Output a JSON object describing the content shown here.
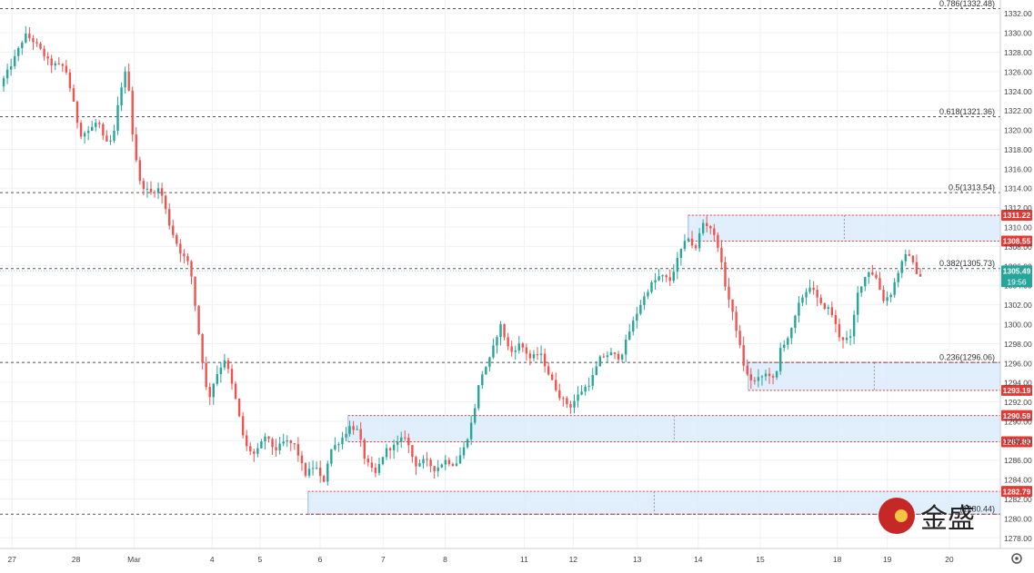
{
  "chart_data": {
    "type": "candlestick",
    "title": "",
    "colors": {
      "up": "#26a69a",
      "down": "#ef5350",
      "zone_fill": "#dcebfb",
      "zone_line": "#e53935",
      "fib_line": "#555555",
      "grid": "#eef0f3",
      "last_price": "#26a69a",
      "label_red": "#e53935"
    },
    "y_axis": {
      "min": 1277,
      "max": 1333,
      "ticks": [
        1278,
        1280,
        1282,
        1284,
        1286,
        1288,
        1290,
        1292,
        1294,
        1296,
        1298,
        1300,
        1302,
        1304,
        1306,
        1308,
        1310,
        1312,
        1314,
        1316,
        1318,
        1320,
        1322,
        1324,
        1326,
        1328,
        1330,
        1332
      ],
      "tick_labels": [
        "1278.00",
        "1280.00",
        "1282.00",
        "1284.00",
        "1286.00",
        "1288.00",
        "1290.00",
        "1292.00",
        "1294.00",
        "1296.00",
        "1298.00",
        "1300.00",
        "1302.00",
        "1304.00",
        "1306.00",
        "1308.00",
        "1310.00",
        "1312.00",
        "1314.00",
        "1316.00",
        "1318.00",
        "1320.00",
        "1322.00",
        "1324.00",
        "1326.00",
        "1328.00",
        "1330.00",
        "1332.00"
      ]
    },
    "x_axis": {
      "min": 0,
      "max": 100,
      "ticks": [
        {
          "label": "27",
          "x": 1.2
        },
        {
          "label": "28",
          "x": 7.6
        },
        {
          "label": "Mar",
          "x": 13.4
        },
        {
          "label": "4",
          "x": 21.2
        },
        {
          "label": "5",
          "x": 26.0
        },
        {
          "label": "6",
          "x": 32.0
        },
        {
          "label": "7",
          "x": 38.3
        },
        {
          "label": "8",
          "x": 44.5
        },
        {
          "label": "11",
          "x": 52.4
        },
        {
          "label": "12",
          "x": 57.3
        },
        {
          "label": "13",
          "x": 63.7
        },
        {
          "label": "14",
          "x": 69.8
        },
        {
          "label": "15",
          "x": 76.0
        },
        {
          "label": "18",
          "x": 83.7
        },
        {
          "label": "19",
          "x": 88.7
        },
        {
          "label": "20",
          "x": 94.9
        }
      ]
    },
    "path_points": [
      [
        0.0,
        1324.5
      ],
      [
        1.5,
        1327.5
      ],
      [
        2.5,
        1329.8
      ],
      [
        3.5,
        1329.0
      ],
      [
        5.0,
        1326.8
      ],
      [
        6.5,
        1326.5
      ],
      [
        7.3,
        1323.0
      ],
      [
        8.0,
        1319.5
      ],
      [
        9.0,
        1320.0
      ],
      [
        9.8,
        1321.0
      ],
      [
        10.5,
        1318.5
      ],
      [
        11.3,
        1319.0
      ],
      [
        12.0,
        1324.0
      ],
      [
        12.7,
        1326.5
      ],
      [
        13.3,
        1319.0
      ],
      [
        14.0,
        1314.5
      ],
      [
        15.0,
        1313.5
      ],
      [
        16.0,
        1314.0
      ],
      [
        17.0,
        1310.0
      ],
      [
        18.0,
        1307.5
      ],
      [
        19.0,
        1306.0
      ],
      [
        20.0,
        1298.0
      ],
      [
        20.8,
        1292.0
      ],
      [
        21.5,
        1294.5
      ],
      [
        22.5,
        1296.5
      ],
      [
        23.5,
        1292.5
      ],
      [
        24.5,
        1287.5
      ],
      [
        25.5,
        1286.5
      ],
      [
        26.5,
        1288.5
      ],
      [
        27.5,
        1287.0
      ],
      [
        28.5,
        1288.0
      ],
      [
        29.5,
        1287.5
      ],
      [
        30.5,
        1284.5
      ],
      [
        31.5,
        1285.5
      ],
      [
        32.3,
        1283.5
      ],
      [
        33.0,
        1287.0
      ],
      [
        34.0,
        1288.0
      ],
      [
        35.0,
        1289.5
      ],
      [
        35.8,
        1289.0
      ],
      [
        36.5,
        1286.0
      ],
      [
        37.5,
        1284.5
      ],
      [
        38.5,
        1287.0
      ],
      [
        39.5,
        1287.5
      ],
      [
        40.5,
        1288.5
      ],
      [
        41.5,
        1285.5
      ],
      [
        42.5,
        1286.0
      ],
      [
        43.5,
        1285.0
      ],
      [
        44.5,
        1286.0
      ],
      [
        45.5,
        1285.5
      ],
      [
        46.5,
        1287.5
      ],
      [
        47.3,
        1290.5
      ],
      [
        48.0,
        1294.5
      ],
      [
        49.0,
        1296.5
      ],
      [
        50.0,
        1300.0
      ],
      [
        51.0,
        1297.0
      ],
      [
        52.0,
        1298.0
      ],
      [
        53.0,
        1296.5
      ],
      [
        54.0,
        1297.0
      ],
      [
        55.0,
        1294.5
      ],
      [
        56.0,
        1292.5
      ],
      [
        57.0,
        1291.5
      ],
      [
        58.0,
        1293.0
      ],
      [
        59.0,
        1294.0
      ],
      [
        60.0,
        1296.5
      ],
      [
        61.0,
        1297.0
      ],
      [
        62.0,
        1296.5
      ],
      [
        63.0,
        1299.5
      ],
      [
        64.0,
        1302.0
      ],
      [
        65.0,
        1304.0
      ],
      [
        66.0,
        1305.0
      ],
      [
        67.0,
        1304.5
      ],
      [
        68.0,
        1307.5
      ],
      [
        68.8,
        1309.0
      ],
      [
        69.5,
        1307.5
      ],
      [
        70.2,
        1310.5
      ],
      [
        71.0,
        1310.0
      ],
      [
        71.8,
        1308.0
      ],
      [
        72.5,
        1304.0
      ],
      [
        73.5,
        1300.0
      ],
      [
        74.5,
        1295.0
      ],
      [
        75.3,
        1294.0
      ],
      [
        76.0,
        1294.5
      ],
      [
        76.8,
        1295.0
      ],
      [
        77.5,
        1294.0
      ],
      [
        78.0,
        1297.5
      ],
      [
        79.0,
        1299.0
      ],
      [
        80.0,
        1302.5
      ],
      [
        81.0,
        1304.0
      ],
      [
        82.0,
        1302.0
      ],
      [
        83.0,
        1301.5
      ],
      [
        84.0,
        1298.5
      ],
      [
        85.0,
        1298.5
      ],
      [
        85.8,
        1303.5
      ],
      [
        86.8,
        1305.5
      ],
      [
        87.5,
        1305.0
      ],
      [
        88.3,
        1302.5
      ],
      [
        89.0,
        1303.0
      ],
      [
        90.0,
        1306.0
      ],
      [
        90.8,
        1307.5
      ],
      [
        91.5,
        1305.5
      ],
      [
        92.0,
        1305.0
      ]
    ],
    "fib_levels": [
      {
        "label": "0.786(1332.48)",
        "value": 1332.48
      },
      {
        "label": "0.618(1321.36)",
        "value": 1321.36
      },
      {
        "label": "0.5(1313.54)",
        "value": 1313.54
      },
      {
        "label": "0.382(1305.73)",
        "value": 1305.73
      },
      {
        "label": "0.236(1296.06)",
        "value": 1296.06
      },
      {
        "label": "(1280.44)",
        "value": 1280.44
      }
    ],
    "zones": [
      {
        "x_start": 68.8,
        "top": 1311.22,
        "bottom": 1308.55,
        "top_label": "1311.22",
        "bottom_label": "1308.55"
      },
      {
        "x_start": 74.8,
        "top": 1296.06,
        "bottom": 1293.19,
        "top_label": "",
        "bottom_label": "1293.19"
      },
      {
        "x_start": 34.8,
        "top": 1290.59,
        "bottom": 1287.89,
        "top_label": "1290.59",
        "bottom_label": "1287.89"
      },
      {
        "x_start": 30.8,
        "top": 1282.79,
        "bottom": 1280.44,
        "top_label": "1282.79",
        "bottom_label": ""
      }
    ],
    "last_price": {
      "value": 1305.49,
      "label": "1305.49",
      "countdown": "19:56"
    }
  },
  "logo": {
    "text": "金盛"
  }
}
